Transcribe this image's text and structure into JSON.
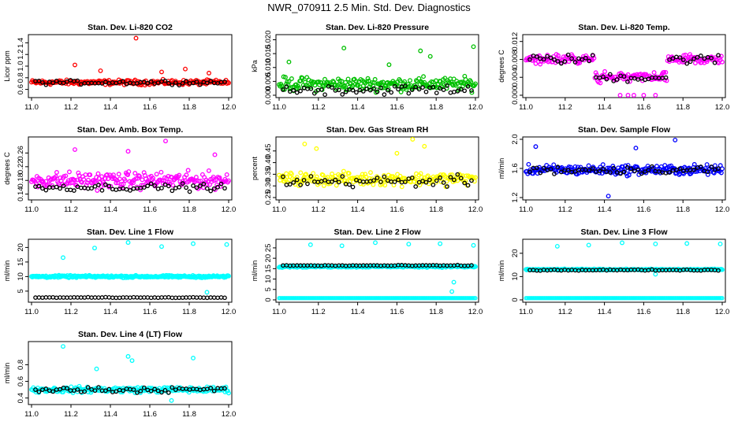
{
  "title": "NWR_070911  2.5 Min. Std. Dev. Diagnostics",
  "chart_data": [
    {
      "type": "scatter",
      "title": "Stan. Dev. Li-820 CO2",
      "ylabel": "Licor ppm",
      "color": "#ff0000",
      "xlim": [
        11.0,
        12.0
      ],
      "ylim": [
        0.5,
        1.5
      ],
      "x_ticks": [
        "11.0",
        "11.2",
        "11.4",
        "11.6",
        "11.8",
        "12.0"
      ],
      "y_ticks": [
        "0.6",
        "0.8",
        "1.0",
        "1.2",
        "1.4"
      ],
      "base": 0.72,
      "spread": 0.06,
      "black_base": 0.72,
      "black_spread": 0.05,
      "outliers": [
        [
          11.53,
          1.48
        ],
        [
          11.22,
          1.02
        ],
        [
          11.78,
          0.95
        ],
        [
          11.35,
          0.92
        ],
        [
          11.66,
          0.9
        ],
        [
          11.9,
          0.88
        ]
      ]
    },
    {
      "type": "scatter",
      "title": "Stan. Dev. Li-820 Pressure",
      "ylabel": "kPa",
      "color": "#00c000",
      "xlim": [
        11.0,
        12.0
      ],
      "ylim": [
        0.0,
        0.021
      ],
      "x_ticks": [
        "11.0",
        "11.2",
        "11.4",
        "11.6",
        "11.8",
        "12.0"
      ],
      "y_ticks": [
        "0.000",
        "0.005",
        "0.010",
        "0.015",
        "0.020"
      ],
      "base": 0.004,
      "spread": 0.0035,
      "black_base": 0.002,
      "black_spread": 0.0025,
      "outliers": [
        [
          11.33,
          0.017
        ],
        [
          11.72,
          0.016
        ],
        [
          11.99,
          0.0175
        ],
        [
          11.77,
          0.014
        ],
        [
          11.05,
          0.012
        ],
        [
          11.56,
          0.011
        ]
      ]
    },
    {
      "type": "scatter",
      "title": "Stan. Dev. Li-820 Temp.",
      "ylabel": "degrees C",
      "color": "#ff00ff",
      "xlim": [
        11.0,
        12.0
      ],
      "ylim": [
        0.0,
        0.013
      ],
      "x_ticks": [
        "11.0",
        "11.2",
        "11.4",
        "11.6",
        "11.8",
        "12.0"
      ],
      "y_ticks": [
        "0.000",
        "0.004",
        "0.008",
        "0.012"
      ],
      "base": 0.008,
      "spread": 0.0015,
      "black_base": 0.008,
      "black_spread": 0.0015,
      "outliers": [
        [
          11.48,
          0.0
        ],
        [
          11.52,
          0.0
        ],
        [
          11.6,
          0.0
        ],
        [
          11.66,
          0.0
        ],
        [
          11.55,
          0.0
        ]
      ]
    },
    {
      "type": "scatter",
      "title": "Stan. Dev. Amb. Box Temp.",
      "ylabel": "degrees C",
      "color": "#ff00ff",
      "xlim": [
        11.0,
        12.0
      ],
      "ylim": [
        0.13,
        0.3
      ],
      "x_ticks": [
        "11.0",
        "11.2",
        "11.4",
        "11.6",
        "11.8",
        "12.0"
      ],
      "y_ticks": [
        "0.14",
        "0.18",
        "0.22",
        "0.26"
      ],
      "base": 0.18,
      "spread": 0.035,
      "black_base": 0.16,
      "black_spread": 0.015,
      "outliers": [
        [
          11.68,
          0.295
        ],
        [
          11.22,
          0.27
        ],
        [
          11.49,
          0.265
        ],
        [
          11.93,
          0.255
        ]
      ]
    },
    {
      "type": "scatter",
      "title": "Stan. Dev. Gas Stream RH",
      "ylabel": "percent",
      "color": "#ffff00",
      "xlim": [
        11.0,
        12.0
      ],
      "ylim": [
        0.25,
        0.5
      ],
      "x_ticks": [
        "11.0",
        "11.2",
        "11.4",
        "11.6",
        "11.8",
        "12.0"
      ],
      "y_ticks": [
        "0.25",
        "0.30",
        "0.35",
        "0.40",
        "0.45"
      ],
      "base": 0.33,
      "spread": 0.04,
      "black_base": 0.32,
      "black_spread": 0.035,
      "outliers": [
        [
          11.68,
          0.5
        ],
        [
          11.13,
          0.48
        ],
        [
          11.19,
          0.46
        ],
        [
          11.74,
          0.47
        ],
        [
          11.6,
          0.44
        ]
      ]
    },
    {
      "type": "scatter",
      "title": "Stan. Dev. Sample Flow",
      "ylabel": "ml/min",
      "color": "#0000ff",
      "xlim": [
        11.0,
        12.0
      ],
      "ylim": [
        1.2,
        2.0
      ],
      "x_ticks": [
        "11.0",
        "11.2",
        "11.4",
        "11.6",
        "11.8",
        "12.0"
      ],
      "y_ticks": [
        "1.2",
        "1.6",
        "2.0"
      ],
      "base": 1.58,
      "spread": 0.1,
      "black_base": 1.58,
      "black_spread": 0.08,
      "outliers": [
        [
          11.76,
          1.99
        ],
        [
          11.42,
          1.22
        ],
        [
          11.05,
          1.9
        ],
        [
          11.56,
          1.88
        ]
      ]
    },
    {
      "type": "scatter",
      "title": "Stan. Dev. Line 1 Flow",
      "ylabel": "ml/min",
      "color": "#00ffff",
      "xlim": [
        11.0,
        12.0
      ],
      "ylim": [
        2.0,
        22.0
      ],
      "x_ticks": [
        "11.0",
        "11.2",
        "11.4",
        "11.6",
        "11.8",
        "12.0"
      ],
      "y_ticks": [
        "5",
        "10",
        "15",
        "20"
      ],
      "base": 10.0,
      "spread": 0.55,
      "black_base": 2.8,
      "black_spread": 0.15,
      "outliers": [
        [
          11.16,
          16.5
        ],
        [
          11.32,
          19.8
        ],
        [
          11.49,
          21.7
        ],
        [
          11.66,
          20.3
        ],
        [
          11.82,
          21.3
        ],
        [
          11.99,
          21.0
        ],
        [
          11.89,
          4.6
        ]
      ]
    },
    {
      "type": "scatter",
      "title": "Stan. Dev. Line 2 Flow",
      "ylabel": "ml/min",
      "color": "#00ffff",
      "xlim": [
        11.0,
        12.0
      ],
      "ylim": [
        0.0,
        28.0
      ],
      "x_ticks": [
        "11.0",
        "11.2",
        "11.4",
        "11.6",
        "11.8",
        "12.0"
      ],
      "y_ticks": [
        "0",
        "5",
        "10",
        "15",
        "20",
        "25"
      ],
      "base": 16.0,
      "spread": 0.6,
      "black_base": 16.5,
      "black_spread": 0.3,
      "outliers": [
        [
          11.16,
          26.5
        ],
        [
          11.32,
          26.0
        ],
        [
          11.49,
          27.5
        ],
        [
          11.66,
          26.8
        ],
        [
          11.82,
          27.0
        ],
        [
          11.99,
          26.2
        ],
        [
          11.89,
          8.5
        ],
        [
          11.88,
          4.0
        ]
      ]
    },
    {
      "type": "scatter",
      "title": "Stan. Dev. Line 3 Flow",
      "ylabel": "ml/min",
      "color": "#00ffff",
      "xlim": [
        11.0,
        12.0
      ],
      "ylim": [
        0.0,
        25.0
      ],
      "x_ticks": [
        "11.0",
        "11.2",
        "11.4",
        "11.6",
        "11.8",
        "12.0"
      ],
      "y_ticks": [
        "0",
        "10",
        "20"
      ],
      "base": 13.0,
      "spread": 0.35,
      "black_base": 12.8,
      "black_spread": 0.3,
      "outliers": [
        [
          11.16,
          23.0
        ],
        [
          11.32,
          23.5
        ],
        [
          11.49,
          24.5
        ],
        [
          11.66,
          24.0
        ],
        [
          11.82,
          24.2
        ],
        [
          11.99,
          24.0
        ],
        [
          11.66,
          11.0
        ]
      ]
    },
    {
      "type": "scatter",
      "title": "Stan. Dev. Line 4 (LT) Flow",
      "ylabel": "ml/min",
      "color": "#00ffff",
      "xlim": [
        11.0,
        12.0
      ],
      "ylim": [
        0.35,
        1.05
      ],
      "x_ticks": [
        "11.0",
        "11.2",
        "11.4",
        "11.6",
        "11.8",
        "12.0"
      ],
      "y_ticks": [
        "0.4",
        "0.6",
        "0.8"
      ],
      "base": 0.5,
      "spread": 0.05,
      "black_base": 0.5,
      "black_spread": 0.05,
      "outliers": [
        [
          11.16,
          1.02
        ],
        [
          11.49,
          0.9
        ],
        [
          11.51,
          0.85
        ],
        [
          11.82,
          0.88
        ],
        [
          11.33,
          0.75
        ],
        [
          11.71,
          0.37
        ]
      ]
    }
  ]
}
